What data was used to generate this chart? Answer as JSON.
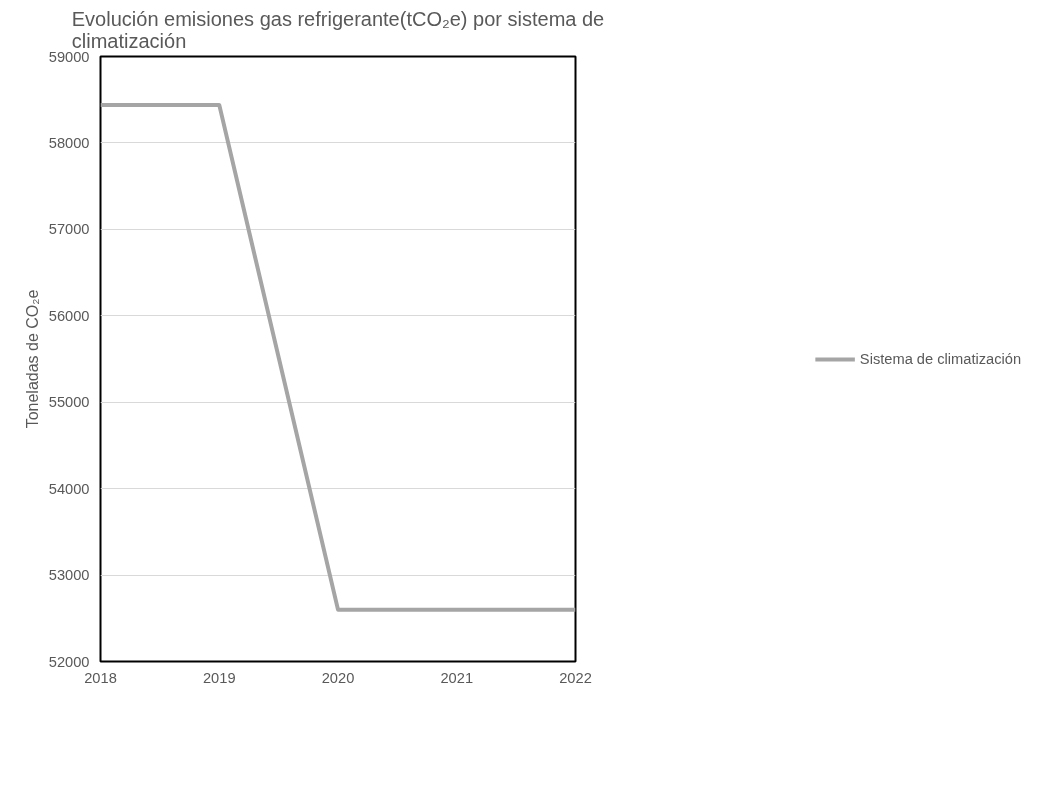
{
  "chart_data": {
    "type": "line",
    "title": "Evolución emisiones gas refrigerante(tCO₂e) por sistema de climatización",
    "ylabel": "Toneladas de CO₂e",
    "x": [
      2018,
      2019,
      2020,
      2021,
      2022
    ],
    "series": [
      {
        "name": "Sistema de climatización",
        "color": "#a5a5a5",
        "values": [
          58440,
          58440,
          52600,
          52600,
          52600
        ]
      }
    ],
    "xlim": [
      2018,
      2022
    ],
    "xticks": [
      2018,
      2019,
      2020,
      2021,
      2022
    ],
    "ylim": [
      52000,
      59000
    ],
    "yticks": [
      52000,
      53000,
      54000,
      55000,
      56000,
      57000,
      58000,
      59000
    ],
    "grid": "y",
    "legend": "right",
    "line_style": "solid",
    "marker": "none"
  }
}
